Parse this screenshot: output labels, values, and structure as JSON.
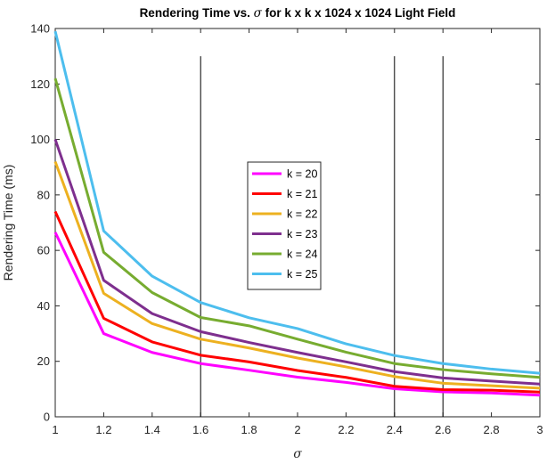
{
  "chart_data": {
    "type": "line",
    "title_parts": [
      "Rendering Time vs. ",
      "σ",
      " for k x k x 1024 x 1024 Light Field"
    ],
    "xlabel": "σ",
    "ylabel": "Rendering Time (ms)",
    "xlim": [
      1,
      3
    ],
    "ylim": [
      0,
      140
    ],
    "x_ticks": [
      1,
      1.2,
      1.4,
      1.6,
      1.8,
      2,
      2.2,
      2.4,
      2.6,
      2.8,
      3
    ],
    "y_ticks": [
      0,
      20,
      40,
      60,
      80,
      100,
      120,
      140
    ],
    "x": [
      1,
      1.2,
      1.4,
      1.6,
      1.8,
      2,
      2.2,
      2.4,
      2.6,
      2.8,
      3
    ],
    "vertical_lines": [
      {
        "x": 1.6,
        "y_top": 130
      },
      {
        "x": 2.4,
        "y_top": 130
      },
      {
        "x": 2.6,
        "y_top": 130
      }
    ],
    "legend_position": "center",
    "grid": false,
    "series": [
      {
        "name": "k = 20",
        "color": "#FF00FF",
        "values": [
          66.5,
          30,
          23.2,
          19.2,
          16.8,
          14.3,
          12.4,
          10.1,
          9,
          8.6,
          7.8
        ]
      },
      {
        "name": "k = 21",
        "color": "#FF0000",
        "values": [
          74,
          35.5,
          27,
          22.2,
          19.8,
          16.7,
          14.2,
          11,
          9.8,
          9.6,
          8.9
        ]
      },
      {
        "name": "k = 22",
        "color": "#EDB120",
        "values": [
          92,
          44.5,
          33.6,
          28,
          24.8,
          21.2,
          18,
          14.5,
          12.1,
          11.2,
          10.3
        ]
      },
      {
        "name": "k = 23",
        "color": "#7E2F8E",
        "values": [
          100,
          49.2,
          37.2,
          30.7,
          26.8,
          23.2,
          19.8,
          16.3,
          14,
          12.9,
          11.8
        ]
      },
      {
        "name": "k = 24",
        "color": "#77AC30",
        "values": [
          122,
          59.3,
          44.8,
          35.8,
          32.8,
          28,
          23.3,
          19.2,
          17,
          15.5,
          14.2
        ]
      },
      {
        "name": "k = 25",
        "color": "#4DBEEE",
        "values": [
          139,
          67,
          50.7,
          41.2,
          35.7,
          31.8,
          26.3,
          22.1,
          19.2,
          17.2,
          15.7
        ]
      }
    ]
  }
}
